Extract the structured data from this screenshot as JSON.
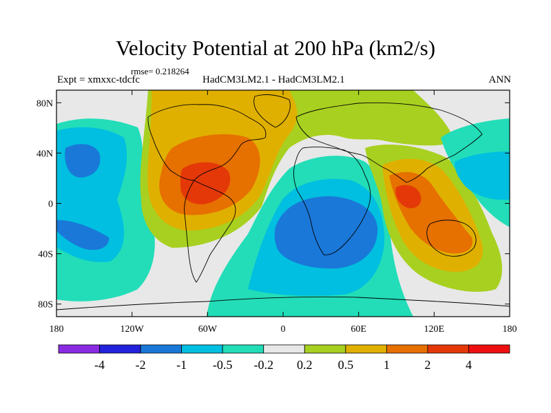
{
  "title": "Velocity Potential at 200 hPa (km2/s)",
  "rmse_text": "rmse= 0.218264",
  "expt_text": "Expt = xmxxc-tdcfc",
  "models_text": "HadCM3LM2.1 - HadCM3LM2.1",
  "season": "ANN",
  "map": {
    "lon_range": [
      -180,
      180
    ],
    "lat_range": [
      -90,
      90
    ],
    "lon_ticks": [
      {
        "value": -180,
        "label": "180"
      },
      {
        "value": -120,
        "label": "120W"
      },
      {
        "value": -60,
        "label": "60W"
      },
      {
        "value": 0,
        "label": "0"
      },
      {
        "value": 60,
        "label": "60E"
      },
      {
        "value": 120,
        "label": "120E"
      },
      {
        "value": 180,
        "label": "180"
      }
    ],
    "lat_ticks": [
      {
        "value": 80,
        "label": "80N"
      },
      {
        "value": 40,
        "label": "40N"
      },
      {
        "value": 0,
        "label": "0"
      },
      {
        "value": -40,
        "label": "40S"
      },
      {
        "value": -80,
        "label": "80S"
      }
    ]
  },
  "colorbar": {
    "colors": [
      "#8a2be2",
      "#2222dd",
      "#1a78d8",
      "#00bfe0",
      "#22ddb8",
      "#e8e8e8",
      "#a8d020",
      "#e0b000",
      "#e67000",
      "#e43808",
      "#ee1010"
    ],
    "labels": [
      "-4",
      "-2",
      "-1",
      "-0.5",
      "-0.2",
      "0.2",
      "0.5",
      "1",
      "2",
      "4"
    ]
  }
}
